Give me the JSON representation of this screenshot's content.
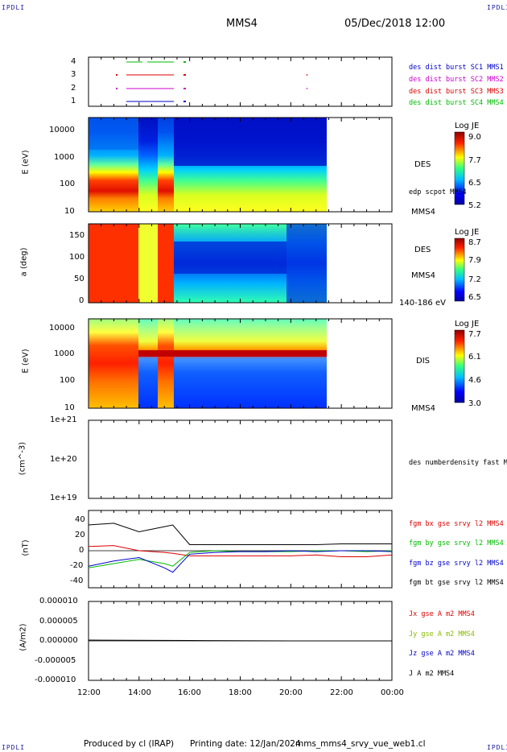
{
  "corners": {
    "tl": "IPDLI",
    "tr": "IPDLI",
    "bl": "IPDLI",
    "br": "IPDLI"
  },
  "header": {
    "spacecraft": "MMS4",
    "date": "05/Dec/2018 12:00"
  },
  "footer": {
    "produced": "Produced by cl (IRAP)",
    "printing_date": "Printing date: 12/Jan/2024",
    "file": "mms_mms4_srvy_vue_web1.cl"
  },
  "time_axis": {
    "ticks": [
      "12:00",
      "14:00",
      "16:00",
      "18:00",
      "20:00",
      "22:00",
      "00:00"
    ]
  },
  "panels": {
    "burst": {
      "yticks": [
        "4",
        "3",
        "2",
        "1"
      ],
      "legend": [
        {
          "text": "des dist burst SC1 MMS1",
          "color": "#0000cc"
        },
        {
          "text": "des dist burst SC2 MMS2",
          "color": "#cc00cc"
        },
        {
          "text": "des dist burst SC3 MMS3",
          "color": "#dd0000"
        },
        {
          "text": "des dist burst SC4 MMS4",
          "color": "#00bb00"
        }
      ]
    },
    "des_energy": {
      "ylabel": "E (eV)",
      "yticks": [
        "10000",
        "1000",
        "100",
        "10"
      ],
      "label": "DES",
      "sublabel": "edp scpot MMS4",
      "sc": "MMS4",
      "cbar_title": "Log JE",
      "cbar_ticks": [
        "9.0",
        "7.7",
        "6.5",
        "5.2"
      ]
    },
    "des_pitch": {
      "ylabel": "a (deg)",
      "yticks": [
        "150",
        "100",
        "50",
        "0"
      ],
      "label": "DES",
      "sc": "MMS4",
      "range": "140-186 eV",
      "cbar_title": "Log JE",
      "cbar_ticks": [
        "8.7",
        "7.9",
        "7.2",
        "6.5"
      ]
    },
    "dis_energy": {
      "ylabel": "E (eV)",
      "yticks": [
        "10000",
        "1000",
        "100",
        "10"
      ],
      "label": "DIS",
      "sc": "MMS4",
      "cbar_title": "Log JE",
      "cbar_ticks": [
        "7.7",
        "6.1",
        "4.6",
        "3.0"
      ]
    },
    "density": {
      "ylabel": "(cm^-3)",
      "yticks": [
        "1e+21",
        "1e+20",
        "1e+19"
      ],
      "legend": "des numberdensity fast M"
    },
    "bfield": {
      "ylabel": "(nT)",
      "yticks": [
        "40",
        "20",
        "0",
        "-20",
        "-40"
      ],
      "legend": [
        {
          "text": "fgm bx gse srvy l2 MMS4",
          "color": "#dd0000"
        },
        {
          "text": "fgm by gse srvy l2 MMS4",
          "color": "#00bb00"
        },
        {
          "text": "fgm bz gse srvy l2 MMS4",
          "color": "#0000cc"
        },
        {
          "text": "fgm bt gse srvy l2 MMS4",
          "color": "#000000"
        }
      ]
    },
    "current": {
      "ylabel": "(A/m2)",
      "yticks": [
        "0.000010",
        "0.000005",
        "0.000000",
        "-0.000005",
        "-0.000010"
      ],
      "legend": [
        {
          "text": "Jx gse A m2 MMS4",
          "color": "#dd0000"
        },
        {
          "text": "Jy gse A m2 MMS4",
          "color": "#88bb00"
        },
        {
          "text": "Jz gse A m2 MMS4",
          "color": "#0000cc"
        },
        {
          "text": "J A m2 MMS4",
          "color": "#000000"
        }
      ]
    }
  },
  "chart_data": [
    {
      "type": "heatmap",
      "title": "DES energy spectrogram",
      "ylabel": "E (eV)",
      "ylim": [
        10,
        30000
      ],
      "yscale": "log",
      "colorbar": {
        "label": "Log JE",
        "range": [
          5.2,
          9.0
        ]
      },
      "x_range": [
        "12:00",
        "00:00"
      ],
      "data_end": "21:25"
    },
    {
      "type": "heatmap",
      "title": "DES pitch angle",
      "ylabel": "a (deg)",
      "ylim": [
        0,
        180
      ],
      "colorbar": {
        "label": "Log JE",
        "range": [
          6.5,
          8.7
        ]
      },
      "energy_range": "140-186 eV"
    },
    {
      "type": "heatmap",
      "title": "DIS energy spectrogram",
      "ylabel": "E (eV)",
      "ylim": [
        10,
        30000
      ],
      "yscale": "log",
      "colorbar": {
        "label": "Log JE",
        "range": [
          3.0,
          7.7
        ]
      }
    },
    {
      "type": "line",
      "ylabel": "(nT)",
      "ylim": [
        -45,
        45
      ],
      "x": [
        "12:00",
        "13:00",
        "14:00",
        "15:00",
        "15:20",
        "16:00",
        "17:00",
        "18:00",
        "19:00",
        "20:00",
        "21:00",
        "22:00",
        "23:00",
        "00:00"
      ],
      "series": [
        {
          "name": "fgm bx gse srvy l2 MMS4",
          "values": [
            5,
            6,
            0,
            -2,
            -3,
            -6,
            -6,
            -6,
            -6,
            -6,
            -5,
            -7,
            -7,
            -5
          ]
        },
        {
          "name": "fgm by gse srvy l2 MMS4",
          "values": [
            -20,
            -15,
            -10,
            -15,
            -18,
            -2,
            0,
            -1,
            -1,
            -1,
            0,
            0,
            -1,
            0
          ]
        },
        {
          "name": "fgm bz gse srvy l2 MMS4",
          "values": [
            -18,
            -12,
            -8,
            -20,
            -25,
            -4,
            -2,
            -1,
            -1,
            0,
            -1,
            0,
            0,
            -1
          ]
        },
        {
          "name": "fgm bt gse srvy l2 MMS4",
          "values": [
            30,
            32,
            22,
            28,
            30,
            7,
            7,
            7,
            7,
            7,
            7,
            8,
            8,
            8
          ]
        }
      ]
    },
    {
      "type": "line",
      "ylabel": "(A/m2)",
      "ylim": [
        -1e-05,
        1e-05
      ],
      "x": [
        "12:00",
        "16:00",
        "20:00",
        "00:00"
      ],
      "series": [
        {
          "name": "J A m2 MMS4",
          "values": [
            2e-07,
            1e-07,
            0,
            0
          ]
        }
      ]
    }
  ]
}
